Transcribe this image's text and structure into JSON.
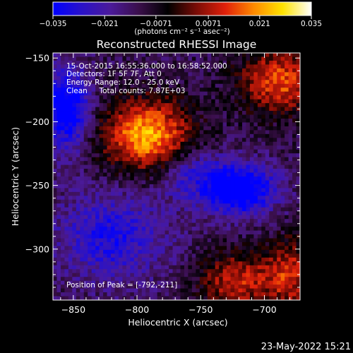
{
  "chart_data": {
    "type": "heatmap",
    "title": "Reconstructed RHESSI Image",
    "xlabel": "Heliocentric X (arcsec)",
    "ylabel": "Heliocentric Y (arcsec)",
    "xlim": [
      -866,
      -672
    ],
    "ylim": [
      -340,
      -146
    ],
    "x_ticks": [
      -850,
      -800,
      -750,
      -700
    ],
    "y_ticks": [
      -150,
      -200,
      -250,
      -300
    ],
    "colorbar": {
      "range": [
        -0.035,
        0.035
      ],
      "tick_values": [
        -0.035,
        -0.021,
        -0.0071,
        0.0071,
        0.021,
        0.035
      ],
      "tick_labels": [
        "−0.035",
        "−0.021",
        "−0.0071",
        "0.0071",
        "0.021",
        "0.035"
      ],
      "unit_label": "(photons cm⁻² s⁻¹ asec⁻²)",
      "colors": [
        "#0000ff",
        "#2a12c8",
        "#4b1a9a",
        "#3a0f4a",
        "#000000",
        "#7a0c06",
        "#e0200a",
        "#ff8a00",
        "#ffe300",
        "#ffffff"
      ]
    },
    "sources": [
      {
        "x": -792,
        "y": -211,
        "peak": 0.035,
        "sx": 24,
        "sy": 20
      },
      {
        "x": -688,
        "y": -168,
        "peak": 0.026,
        "sx": 22,
        "sy": 18
      },
      {
        "x": -722,
        "y": -325,
        "peak": 0.022,
        "sx": 20,
        "sy": 16
      },
      {
        "x": -680,
        "y": -320,
        "peak": 0.021,
        "sx": 14,
        "sy": 20
      }
    ],
    "negative_regions": [
      {
        "x": -855,
        "y": -190,
        "peak": -0.03,
        "sx": 12,
        "sy": 22
      },
      {
        "x": -720,
        "y": -253,
        "peak": -0.032,
        "sx": 20,
        "sy": 14
      },
      {
        "x": -820,
        "y": -290,
        "peak": -0.018,
        "sx": 30,
        "sy": 24
      },
      {
        "x": -760,
        "y": -240,
        "peak": -0.014,
        "sx": 18,
        "sy": 14
      }
    ],
    "background_level": -0.012,
    "annotations": [
      "15-Oct-2015 16:55:36.000 to 16:58:52.000",
      "Detectors: 1F 5F 7F, Att 0",
      "Energy Range: 12.0 - 25.0 keV",
      "Clean     Total counts: 7.87E+03"
    ],
    "peak_label": "Position of Peak = [-792,-211]"
  },
  "footer_date": "23-May-2022 15:21"
}
